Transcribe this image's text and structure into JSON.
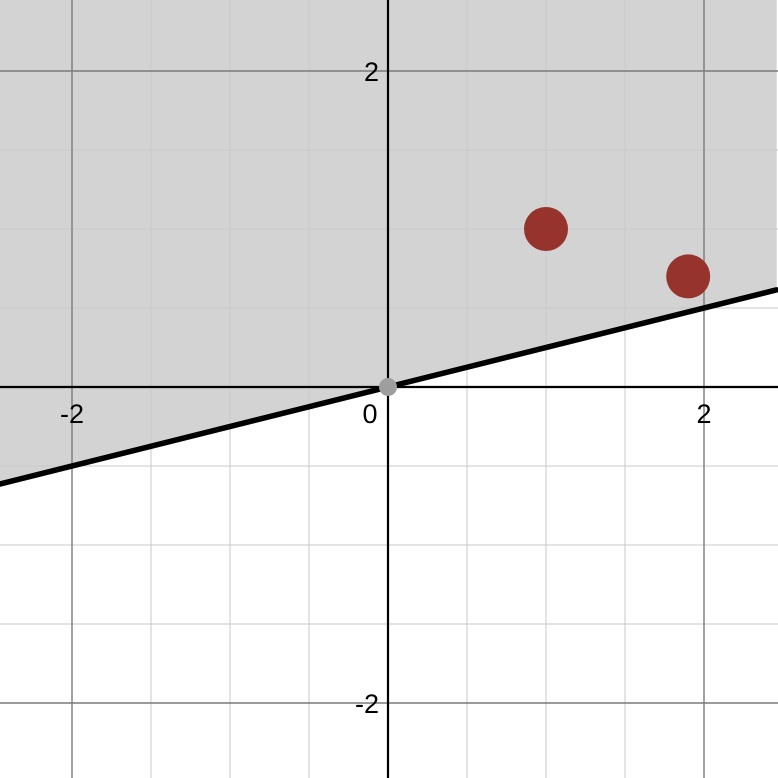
{
  "chart_data": {
    "type": "scatter",
    "xlim": [
      -2.46,
      2.46
    ],
    "ylim": [
      -2.46,
      2.46
    ],
    "grid": true,
    "major_grid_step": 2,
    "minor_grid_step": 0.5,
    "x_ticks": [
      {
        "value": -2,
        "label": "-2"
      },
      {
        "value": 2,
        "label": "2"
      }
    ],
    "y_ticks": [
      {
        "value": -2,
        "label": "-2"
      },
      {
        "value": 2,
        "label": "2"
      }
    ],
    "origin_label": "0",
    "boundary_line": {
      "slope": 0.25,
      "intercept": 0,
      "style": "solid"
    },
    "shaded_region": "above",
    "origin_point": {
      "x": 0,
      "y": 0
    },
    "points": [
      {
        "x": 1.0,
        "y": 1.0
      },
      {
        "x": 1.9,
        "y": 0.7
      }
    ],
    "colors": {
      "shade": "#d3d3d3",
      "line": "#000000",
      "points": "#97332d",
      "origin_point": "#9e9e9e",
      "major_grid": "#7a7a7a",
      "minor_grid": "#c8c8c8",
      "axis": "#000000"
    }
  }
}
